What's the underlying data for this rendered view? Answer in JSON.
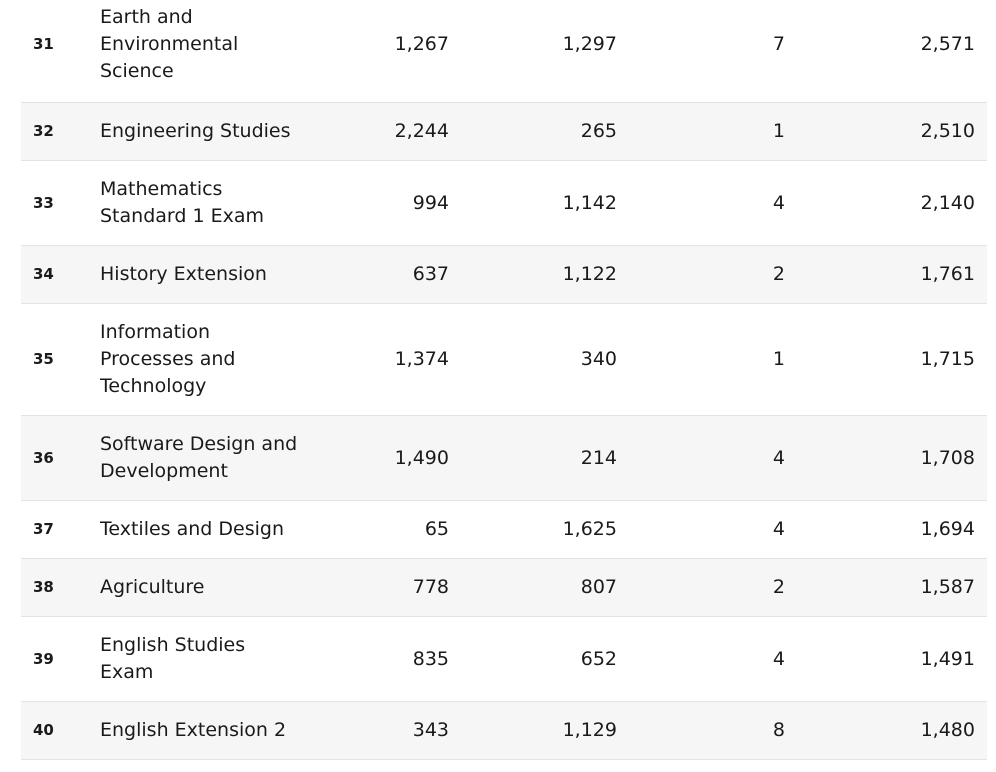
{
  "table": {
    "rows": [
      {
        "rank": "31",
        "subject": "Earth and Environmental Science",
        "col1": "1,267",
        "col2": "1,297",
        "col3": "7",
        "total": "2,571"
      },
      {
        "rank": "32",
        "subject": "Engineering Studies",
        "col1": "2,244",
        "col2": "265",
        "col3": "1",
        "total": "2,510"
      },
      {
        "rank": "33",
        "subject": "Mathematics Standard 1 Exam",
        "col1": "994",
        "col2": "1,142",
        "col3": "4",
        "total": "2,140"
      },
      {
        "rank": "34",
        "subject": "History Extension",
        "col1": "637",
        "col2": "1,122",
        "col3": "2",
        "total": "1,761"
      },
      {
        "rank": "35",
        "subject": "Information Processes and Technology",
        "col1": "1,374",
        "col2": "340",
        "col3": "1",
        "total": "1,715"
      },
      {
        "rank": "36",
        "subject": "Software Design and Development",
        "col1": "1,490",
        "col2": "214",
        "col3": "4",
        "total": "1,708"
      },
      {
        "rank": "37",
        "subject": "Textiles and Design",
        "col1": "65",
        "col2": "1,625",
        "col3": "4",
        "total": "1,694"
      },
      {
        "rank": "38",
        "subject": "Agriculture",
        "col1": "778",
        "col2": "807",
        "col3": "2",
        "total": "1,587"
      },
      {
        "rank": "39",
        "subject": "English Studies Exam",
        "col1": "835",
        "col2": "652",
        "col3": "4",
        "total": "1,491"
      },
      {
        "rank": "40",
        "subject": "English Extension 2",
        "col1": "343",
        "col2": "1,129",
        "col3": "8",
        "total": "1,480"
      }
    ]
  }
}
